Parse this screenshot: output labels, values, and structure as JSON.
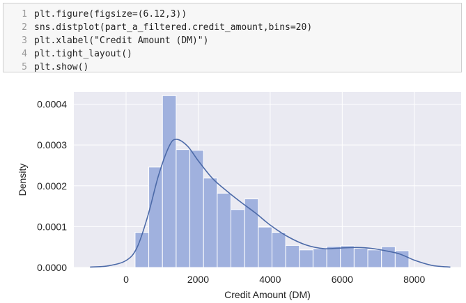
{
  "code_cell": {
    "lines": [
      {
        "number": "1",
        "code": "plt.figure(figsize=(6.12,3))"
      },
      {
        "number": "2",
        "code": "sns.distplot(part_a_filtered.credit_amount,bins=20)"
      },
      {
        "number": "3",
        "code": "plt.xlabel(\"Credit Amount (DM)\")"
      },
      {
        "number": "4",
        "code": "plt.tight_layout()"
      },
      {
        "number": "5",
        "code": "plt.show()"
      }
    ]
  },
  "chart_data": {
    "type": "bar",
    "title": "",
    "xlabel": "Credit Amount (DM)",
    "ylabel": "Density",
    "xlim": [
      -1450,
      9300
    ],
    "ylim": [
      0,
      0.00043
    ],
    "x_ticks": [
      0,
      2000,
      4000,
      6000,
      8000
    ],
    "x_tick_labels": [
      "0",
      "2000",
      "4000",
      "6000",
      "8000"
    ],
    "y_ticks": [
      0,
      0.0001,
      0.0002,
      0.0003,
      0.0004
    ],
    "y_tick_labels": [
      "0.0000",
      "0.0001",
      "0.0002",
      "0.0003",
      "0.0004"
    ],
    "grid": true,
    "bins": [
      {
        "start": 250,
        "end": 630,
        "density": 8.6e-05
      },
      {
        "start": 630,
        "end": 1010,
        "density": 0.000246
      },
      {
        "start": 1010,
        "end": 1390,
        "density": 0.000421
      },
      {
        "start": 1390,
        "end": 1770,
        "density": 0.000289
      },
      {
        "start": 1770,
        "end": 2150,
        "density": 0.000287
      },
      {
        "start": 2150,
        "end": 2530,
        "density": 0.000219
      },
      {
        "start": 2530,
        "end": 2910,
        "density": 0.000182
      },
      {
        "start": 2910,
        "end": 3290,
        "density": 0.000142
      },
      {
        "start": 3290,
        "end": 3670,
        "density": 0.000168
      },
      {
        "start": 3670,
        "end": 4050,
        "density": 9.9e-05
      },
      {
        "start": 4050,
        "end": 4430,
        "density": 8.6e-05
      },
      {
        "start": 4430,
        "end": 4810,
        "density": 5.4e-05
      },
      {
        "start": 4810,
        "end": 5190,
        "density": 4.3e-05
      },
      {
        "start": 5190,
        "end": 5570,
        "density": 4.6e-05
      },
      {
        "start": 5570,
        "end": 5950,
        "density": 5.2e-05
      },
      {
        "start": 5950,
        "end": 6330,
        "density": 5.3e-05
      },
      {
        "start": 6330,
        "end": 6710,
        "density": 4.7e-05
      },
      {
        "start": 6710,
        "end": 7090,
        "density": 4.3e-05
      },
      {
        "start": 7090,
        "end": 7470,
        "density": 5.1e-05
      },
      {
        "start": 7470,
        "end": 7850,
        "density": 4.1e-05
      }
    ],
    "kde": {
      "x": [
        -1000,
        -500,
        0,
        300,
        600,
        900,
        1200,
        1400,
        1700,
        2000,
        2400,
        2800,
        3200,
        3600,
        4000,
        4500,
        5000,
        5500,
        6000,
        6400,
        6800,
        7200,
        7600,
        8000,
        8500,
        9000
      ],
      "y": [
        1e-06,
        4e-06,
        1.7e-05,
        4.8e-05,
        0.000125,
        0.000225,
        0.000298,
        0.000314,
        0.000298,
        0.000262,
        0.000218,
        0.000187,
        0.000159,
        0.000133,
        0.000104,
        7.5e-05,
        5.5e-05,
        4.6e-05,
        4.8e-05,
        4.9e-05,
        4.7e-05,
        4.1e-05,
        3.3e-05,
        1.8e-05,
        5e-06,
        1e-06
      ]
    },
    "colors": {
      "plot_background": "#eaeaf2",
      "grid": "#ffffff",
      "bar_fill": "#a0b1de",
      "bar_edge": "#ffffff",
      "kde_line": "#4c6aa8",
      "text": "#222222"
    }
  }
}
